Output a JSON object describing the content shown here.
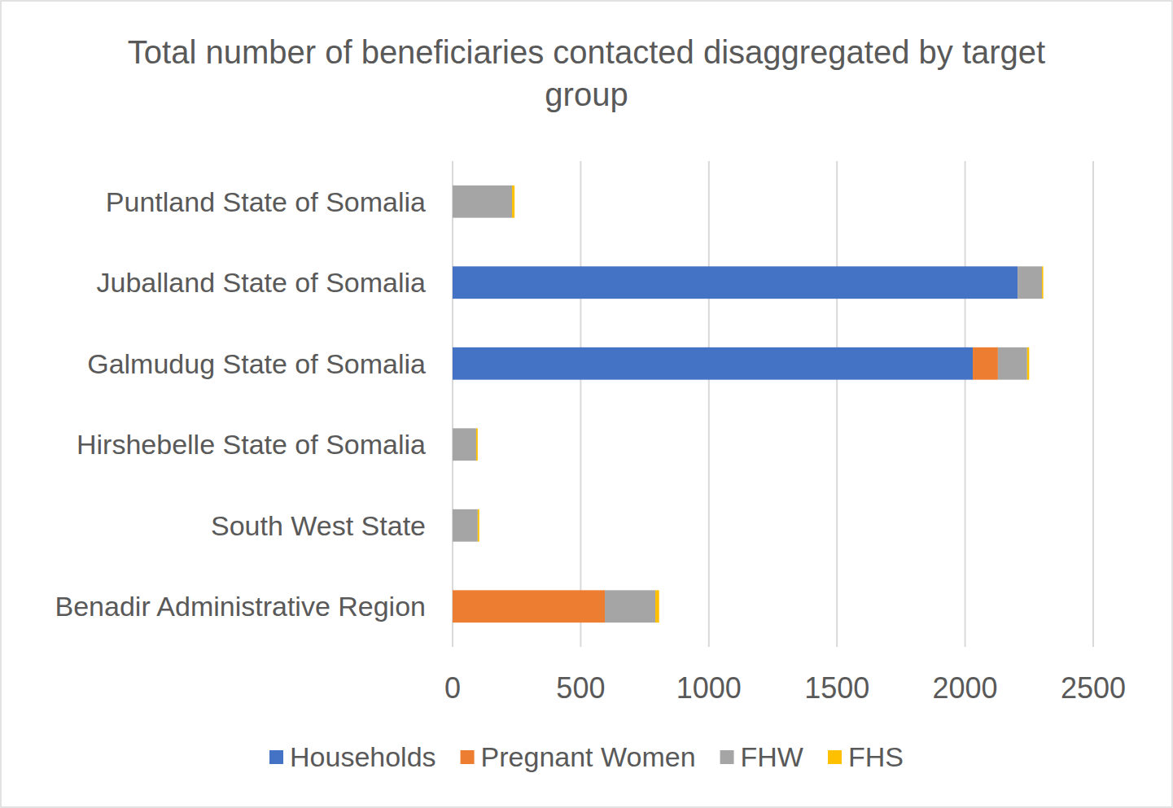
{
  "chart_data": {
    "type": "bar",
    "title": "Total number of beneficiaries contacted disaggregated by target group",
    "orientation": "horizontal",
    "stacked": true,
    "grid": true,
    "legend": "bottom",
    "categories": [
      "Puntland State of Somalia",
      "Juballand State of Somalia",
      "Galmudug State of Somalia",
      "Hirshebelle State of Somalia",
      "South West State",
      "Benadir Administrative Region"
    ],
    "series": [
      {
        "name": "Households",
        "color": "#4472c4",
        "values": [
          0,
          2205,
          2030,
          0,
          0,
          0
        ]
      },
      {
        "name": "Pregnant Women",
        "color": "#ed7d31",
        "values": [
          0,
          0,
          98,
          0,
          0,
          594
        ]
      },
      {
        "name": "FHW",
        "color": "#a5a5a5",
        "values": [
          232,
          95,
          114,
          92,
          98,
          197
        ]
      },
      {
        "name": "FHS",
        "color": "#ffc000",
        "values": [
          10,
          5,
          8,
          6,
          6,
          15
        ]
      }
    ],
    "xlim": [
      0,
      2500
    ],
    "xticks": [
      0,
      500,
      1000,
      1500,
      2000,
      2500
    ]
  }
}
